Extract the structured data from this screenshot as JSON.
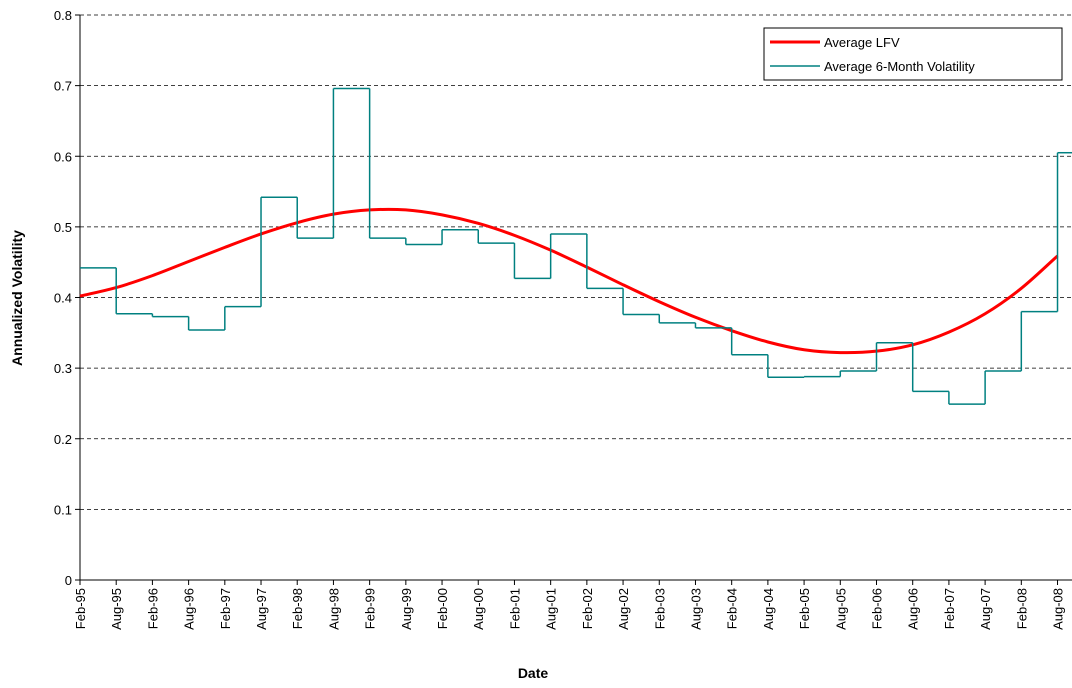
{
  "chart_data": {
    "type": "line",
    "x_label": "Date",
    "y_label": "Annualized Volatility",
    "categories": [
      "Feb-95",
      "Aug-95",
      "Feb-96",
      "Aug-96",
      "Feb-97",
      "Aug-97",
      "Feb-98",
      "Aug-98",
      "Feb-99",
      "Aug-99",
      "Feb-00",
      "Aug-00",
      "Feb-01",
      "Aug-01",
      "Feb-02",
      "Aug-02",
      "Feb-03",
      "Aug-03",
      "Feb-04",
      "Aug-04",
      "Feb-05",
      "Aug-05",
      "Feb-06",
      "Aug-06",
      "Feb-07",
      "Aug-07",
      "Feb-08",
      "Aug-08"
    ],
    "series": [
      {
        "name": "Average LFV",
        "color": "#ff0000",
        "style": "smooth",
        "values": [
          0.402,
          0.414,
          0.431,
          0.451,
          0.471,
          0.49,
          0.506,
          0.518,
          0.524,
          0.524,
          0.517,
          0.505,
          0.488,
          0.467,
          0.443,
          0.418,
          0.394,
          0.372,
          0.353,
          0.337,
          0.326,
          0.322,
          0.324,
          0.333,
          0.351,
          0.377,
          0.413,
          0.459
        ]
      },
      {
        "name": "Average 6-Month Volatility",
        "color": "#008080",
        "style": "step",
        "values": [
          0.442,
          0.377,
          0.373,
          0.354,
          0.387,
          0.542,
          0.484,
          0.696,
          0.484,
          0.475,
          0.496,
          0.477,
          0.427,
          0.49,
          0.413,
          0.376,
          0.364,
          0.357,
          0.319,
          0.287,
          0.288,
          0.296,
          0.336,
          0.267,
          0.249,
          0.296,
          0.38,
          0.605
        ]
      }
    ],
    "ylim": [
      0,
      0.8
    ],
    "yticks": [
      0,
      0.1,
      0.2,
      0.3,
      0.4,
      0.5,
      0.6,
      0.7,
      0.8
    ],
    "grid": true,
    "legend": "top-right"
  }
}
